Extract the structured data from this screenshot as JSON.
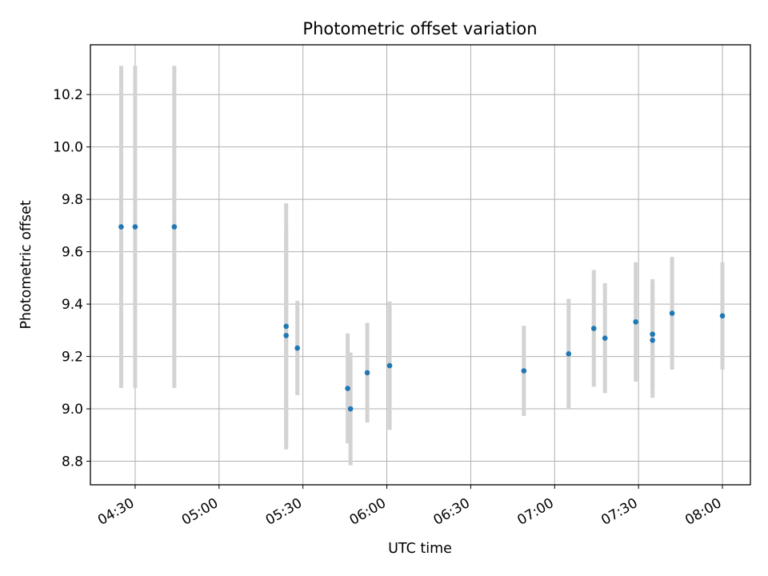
{
  "chart_data": {
    "type": "scatter",
    "title": "Photometric offset variation",
    "xlabel": "UTC time",
    "ylabel": "Photometric offset",
    "xlim": [
      "04:14",
      "08:10"
    ],
    "ylim": [
      8.71,
      10.39
    ],
    "x_ticks": [
      "04:30",
      "05:00",
      "05:30",
      "06:00",
      "06:30",
      "07:00",
      "07:30",
      "08:00"
    ],
    "y_ticks": [
      8.8,
      9.0,
      9.2,
      9.4,
      9.6,
      9.8,
      10.0,
      10.2
    ],
    "grid": true,
    "marker_color": "#1f77b4",
    "errorbar_color": "#d3d3d3",
    "points": [
      {
        "t": "04:25",
        "y": 9.695,
        "err": 0.615
      },
      {
        "t": "04:30",
        "y": 9.695,
        "err": 0.615
      },
      {
        "t": "04:44",
        "y": 9.695,
        "err": 0.615
      },
      {
        "t": "05:24",
        "y": 9.315,
        "err": 0.47
      },
      {
        "t": "05:24",
        "y": 9.28,
        "err": 0.41
      },
      {
        "t": "05:28",
        "y": 9.232,
        "err": 0.18
      },
      {
        "t": "05:46",
        "y": 9.078,
        "err": 0.21
      },
      {
        "t": "05:47",
        "y": 9.0,
        "err": 0.215
      },
      {
        "t": "05:53",
        "y": 9.138,
        "err": 0.19
      },
      {
        "t": "06:01",
        "y": 9.165,
        "err": 0.245
      },
      {
        "t": "06:49",
        "y": 9.145,
        "err": 0.172
      },
      {
        "t": "07:05",
        "y": 9.21,
        "err": 0.21
      },
      {
        "t": "07:14",
        "y": 9.307,
        "err": 0.223
      },
      {
        "t": "07:18",
        "y": 9.27,
        "err": 0.21
      },
      {
        "t": "07:29",
        "y": 9.332,
        "err": 0.228
      },
      {
        "t": "07:35",
        "y": 9.285,
        "err": 0.21
      },
      {
        "t": "07:35",
        "y": 9.262,
        "err": 0.22
      },
      {
        "t": "07:42",
        "y": 9.365,
        "err": 0.215
      },
      {
        "t": "08:00",
        "y": 9.355,
        "err": 0.205
      }
    ]
  }
}
